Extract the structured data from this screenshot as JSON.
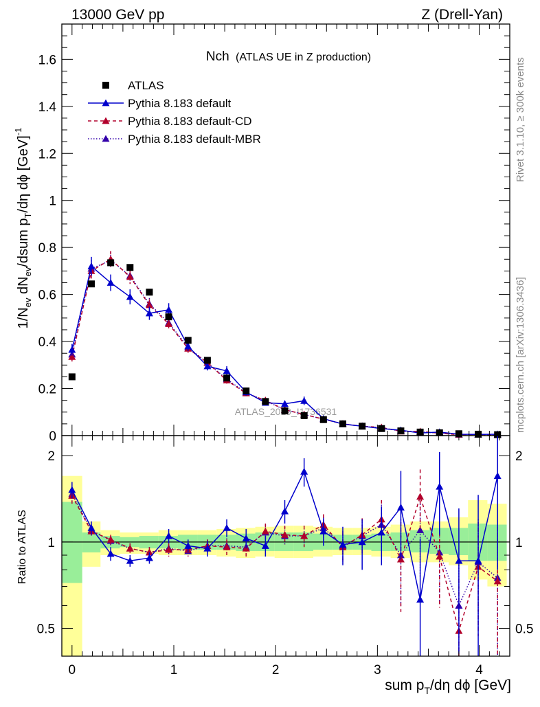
{
  "header": {
    "left": "13000 GeV pp",
    "right": "Z (Drell-Yan)"
  },
  "plot_title": "Nch",
  "plot_subtitle": "(ATLAS UE in Z production)",
  "watermark": "ATLAS_2019_I1736531",
  "side_text_top": "Rivet 3.1.10, ≥ 300k events",
  "side_text_bottom": "mcplots.cern.ch [arXiv:1306.3436]",
  "colors": {
    "data": "#000000",
    "default": "#0000cc",
    "cd": "#b2002b",
    "mbr": "#3300aa",
    "band_yellow": "#ffff99",
    "band_green": "#99ee99"
  },
  "chart_data": [
    {
      "type": "scatter",
      "panel": "main",
      "ylabel": "1/N_ev dN_ev/dsum p_T/dη dφ [GeV]^-1",
      "xlim": [
        -0.1,
        4.3
      ],
      "ylim": [
        0,
        1.75
      ],
      "yticks": [
        "0",
        "0.2",
        "0.4",
        "0.6",
        "0.8",
        "1",
        "1.2",
        "1.4",
        "1.6"
      ],
      "legend": [
        "ATLAS",
        "Pythia 8.183 default",
        "Pythia 8.183 default-CD",
        "Pythia 8.183 default-MBR"
      ],
      "x": [
        0.0,
        0.19,
        0.38,
        0.57,
        0.76,
        0.95,
        1.14,
        1.33,
        1.52,
        1.71,
        1.9,
        2.09,
        2.28,
        2.47,
        2.66,
        2.85,
        3.04,
        3.23,
        3.42,
        3.61,
        3.8,
        3.99,
        4.18
      ],
      "series": [
        {
          "name": "ATLAS",
          "values": [
            0.25,
            0.645,
            0.735,
            0.715,
            0.61,
            0.505,
            0.405,
            0.32,
            0.245,
            0.19,
            0.145,
            0.105,
            0.085,
            0.068,
            0.05,
            0.04,
            0.03,
            0.02,
            0.015,
            0.012,
            0.008,
            0.006,
            0.004
          ]
        },
        {
          "name": "Pythia 8.183 default",
          "values": [
            0.365,
            0.72,
            0.65,
            0.59,
            0.52,
            0.535,
            0.38,
            0.295,
            0.275,
            0.185,
            0.14,
            0.135,
            0.148,
            0.072,
            0.049,
            0.04,
            0.03,
            0.023,
            0.011,
            0.015,
            0.006,
            0.005,
            0.006
          ],
          "errors": [
            0.025,
            0.04,
            0.035,
            0.032,
            0.028,
            0.028,
            0.02,
            0.018,
            0.02,
            0.015,
            0.012,
            0.012,
            0.018,
            0.008,
            0.006,
            0.005,
            0.005,
            0.004,
            0.004,
            0.004,
            0.003,
            0.003,
            0.004
          ]
        },
        {
          "name": "Pythia 8.183 default-CD",
          "values": [
            0.335,
            0.7,
            0.75,
            0.675,
            0.555,
            0.475,
            0.37,
            0.31,
            0.235,
            0.18,
            0.15,
            0.11,
            0.09,
            0.07,
            0.05,
            0.04,
            0.035,
            0.018,
            0.018,
            0.01,
            0.004,
            0.005,
            0.003
          ],
          "errors": [
            0.02,
            0.035,
            0.035,
            0.03,
            0.025,
            0.022,
            0.018,
            0.016,
            0.014,
            0.012,
            0.01,
            0.009,
            0.008,
            0.006,
            0.005,
            0.004,
            0.004,
            0.003,
            0.003,
            0.003,
            0.002,
            0.002,
            0.002
          ]
        },
        {
          "name": "Pythia 8.183 default-MBR",
          "values": [
            0.345,
            0.71,
            0.745,
            0.68,
            0.56,
            0.48,
            0.375,
            0.31,
            0.24,
            0.182,
            0.148,
            0.11,
            0.09,
            0.07,
            0.05,
            0.04,
            0.033,
            0.019,
            0.016,
            0.011,
            0.005,
            0.005,
            0.003
          ],
          "errors": [
            0.02,
            0.035,
            0.035,
            0.03,
            0.025,
            0.022,
            0.018,
            0.016,
            0.014,
            0.012,
            0.01,
            0.009,
            0.008,
            0.006,
            0.005,
            0.004,
            0.004,
            0.003,
            0.003,
            0.003,
            0.002,
            0.002,
            0.002
          ]
        }
      ]
    },
    {
      "type": "scatter",
      "panel": "ratio",
      "ylabel": "Ratio to ATLAS",
      "xlabel": "sum p_T/dη dφ [GeV]",
      "xlim": [
        -0.1,
        4.3
      ],
      "ylim": [
        0.4,
        2.35
      ],
      "log_y": true,
      "yticks": [
        "0.5",
        "1",
        "2"
      ],
      "xticks": [
        "0",
        "1",
        "2",
        "3",
        "4"
      ],
      "x": [
        0.0,
        0.19,
        0.38,
        0.57,
        0.76,
        0.95,
        1.14,
        1.33,
        1.52,
        1.71,
        1.9,
        2.09,
        2.28,
        2.47,
        2.66,
        2.85,
        3.04,
        3.23,
        3.42,
        3.61,
        3.8,
        3.99,
        4.18
      ],
      "band_edges": [
        -0.1,
        0.1,
        0.28,
        0.47,
        0.66,
        0.85,
        1.04,
        1.23,
        1.42,
        1.61,
        1.8,
        1.99,
        2.18,
        2.37,
        2.56,
        2.75,
        2.94,
        3.13,
        3.32,
        3.51,
        3.7,
        3.89,
        4.08,
        4.27
      ],
      "band_yellow": [
        [
          0.3,
          1.7
        ],
        [
          0.82,
          1.18
        ],
        [
          0.9,
          1.1
        ],
        [
          0.91,
          1.08
        ],
        [
          0.91,
          1.08
        ],
        [
          0.9,
          1.1
        ],
        [
          0.9,
          1.1
        ],
        [
          0.9,
          1.1
        ],
        [
          0.89,
          1.11
        ],
        [
          0.88,
          1.12
        ],
        [
          0.89,
          1.13
        ],
        [
          0.88,
          1.14
        ],
        [
          0.88,
          1.14
        ],
        [
          0.89,
          1.13
        ],
        [
          0.9,
          1.12
        ],
        [
          0.9,
          1.12
        ],
        [
          0.89,
          1.13
        ],
        [
          0.88,
          1.15
        ],
        [
          0.85,
          1.18
        ],
        [
          0.85,
          1.18
        ],
        [
          0.83,
          1.22
        ],
        [
          0.74,
          1.4
        ],
        [
          0.7,
          1.36
        ]
      ],
      "band_green": [
        [
          0.72,
          1.38
        ],
        [
          0.92,
          1.08
        ],
        [
          0.95,
          1.05
        ],
        [
          0.96,
          1.04
        ],
        [
          0.95,
          1.05
        ],
        [
          0.95,
          1.05
        ],
        [
          0.94,
          1.06
        ],
        [
          0.94,
          1.06
        ],
        [
          0.94,
          1.06
        ],
        [
          0.93,
          1.07
        ],
        [
          0.93,
          1.08
        ],
        [
          0.93,
          1.08
        ],
        [
          0.93,
          1.08
        ],
        [
          0.94,
          1.07
        ],
        [
          0.94,
          1.06
        ],
        [
          0.94,
          1.06
        ],
        [
          0.93,
          1.07
        ],
        [
          0.93,
          1.08
        ],
        [
          0.92,
          1.1
        ],
        [
          0.91,
          1.12
        ],
        [
          0.9,
          1.12
        ],
        [
          0.86,
          1.16
        ],
        [
          0.86,
          1.15
        ]
      ],
      "series": [
        {
          "name": "Pythia 8.183 default",
          "values": [
            1.52,
            1.12,
            0.91,
            0.86,
            0.88,
            1.05,
            0.97,
            0.95,
            1.12,
            1.03,
            0.97,
            1.28,
            1.76,
            1.09,
            0.98,
            1.0,
            1.08,
            1.32,
            0.63,
            1.56,
            0.86,
            0.86,
            1.7
          ],
          "errors": [
            0.1,
            0.06,
            0.05,
            0.04,
            0.04,
            0.06,
            0.05,
            0.06,
            0.08,
            0.08,
            0.08,
            0.12,
            0.2,
            0.12,
            0.15,
            0.2,
            0.25,
            0.45,
            0.4,
            0.5,
            0.45,
            0.6,
            0.9
          ]
        },
        {
          "name": "Pythia 8.183 default-CD",
          "values": [
            1.45,
            1.09,
            1.02,
            0.95,
            0.92,
            0.94,
            0.94,
            0.97,
            0.96,
            0.95,
            1.09,
            1.06,
            1.05,
            1.15,
            0.96,
            1.06,
            1.2,
            0.87,
            1.44,
            0.89,
            0.49,
            0.82,
            0.73
          ],
          "errors": [
            0.09,
            0.05,
            0.04,
            0.04,
            0.04,
            0.05,
            0.05,
            0.05,
            0.06,
            0.06,
            0.07,
            0.08,
            0.09,
            0.1,
            0.12,
            0.15,
            0.2,
            0.3,
            0.35,
            0.3,
            0.25,
            0.35,
            0.4
          ]
        },
        {
          "name": "Pythia 8.183 default-MBR",
          "values": [
            1.47,
            1.1,
            1.01,
            0.95,
            0.92,
            0.95,
            0.93,
            0.97,
            0.97,
            0.96,
            1.08,
            1.05,
            1.05,
            1.12,
            0.97,
            1.05,
            1.15,
            0.9,
            1.1,
            0.92,
            0.6,
            0.85,
            0.75
          ],
          "errors": [
            0.09,
            0.05,
            0.04,
            0.04,
            0.04,
            0.05,
            0.05,
            0.05,
            0.06,
            0.06,
            0.07,
            0.08,
            0.09,
            0.1,
            0.12,
            0.15,
            0.2,
            0.3,
            0.35,
            0.3,
            0.25,
            0.35,
            0.4
          ]
        }
      ]
    }
  ]
}
